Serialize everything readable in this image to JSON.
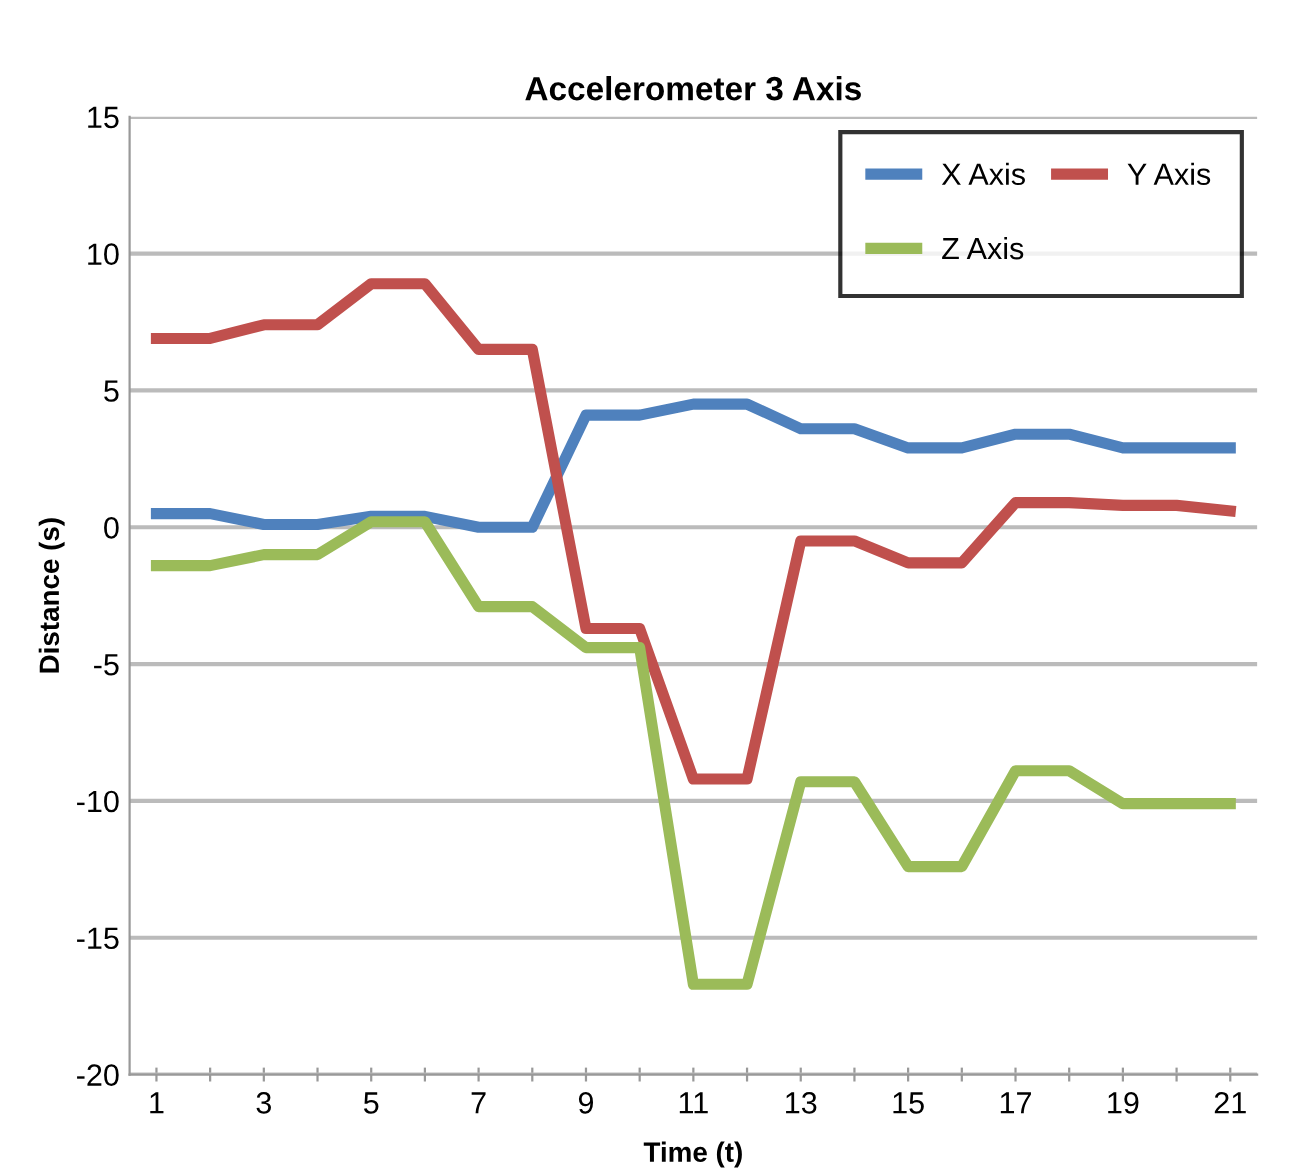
{
  "chart_data": {
    "type": "line",
    "title": "Accelerometer 3 Axis",
    "xlabel": "Time (t)",
    "ylabel": "Distance (s)",
    "categories": [
      "1",
      null,
      "3",
      null,
      "5",
      null,
      "7",
      null,
      "9",
      null,
      "11",
      null,
      "13",
      null,
      "15",
      null,
      "17",
      null,
      "19",
      null,
      "21"
    ],
    "series": [
      {
        "name": "X Axis",
        "color": "#4f81bd",
        "values": [
          0.5,
          0.5,
          0.1,
          0.1,
          0.4,
          0.4,
          0,
          0,
          4.1,
          4.1,
          4.5,
          4.5,
          3.6,
          3.6,
          2.9,
          2.9,
          3.4,
          3.4,
          2.9,
          2.9,
          2.9
        ]
      },
      {
        "name": "Y Axis",
        "color": "#c0504d",
        "values": [
          6.9,
          6.9,
          7.4,
          7.4,
          8.9,
          8.9,
          6.5,
          6.5,
          -3.7,
          -3.7,
          -9.2,
          -9.2,
          -0.5,
          -0.5,
          -1.3,
          -1.3,
          0.9,
          0.9,
          0.8,
          0.8,
          0.6
        ]
      },
      {
        "name": "Z Axis",
        "color": "#9bbb59",
        "values": [
          -1.4,
          -1.4,
          -1.0,
          -1.0,
          0.2,
          0.2,
          -2.9,
          -2.9,
          -4.4,
          -4.4,
          -16.7,
          -16.7,
          -9.3,
          -9.3,
          -12.4,
          -12.4,
          -8.9,
          -8.9,
          -10.1,
          -10.1,
          -10.1
        ]
      }
    ],
    "ylim": [
      -20,
      15
    ],
    "yticks": [
      -20,
      -15,
      -10,
      -5,
      0,
      5,
      10,
      15
    ],
    "grid": "y",
    "legend": "top right",
    "marker": "none",
    "line_style": "solid"
  }
}
